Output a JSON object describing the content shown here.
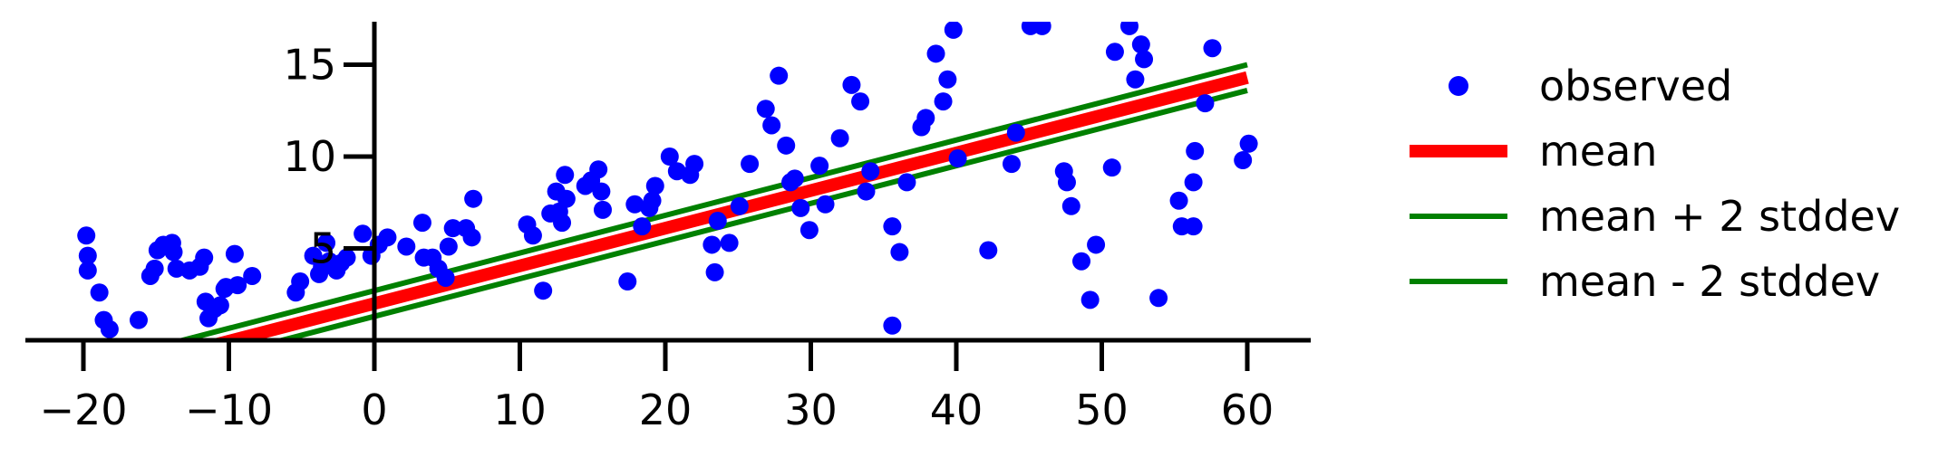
{
  "chart_data": {
    "type": "scatter",
    "title": "",
    "xlabel": "",
    "ylabel": "",
    "xlim": [
      -24,
      64
    ],
    "ylim": [
      0,
      17
    ],
    "xticks": [
      -20,
      -10,
      0,
      10,
      20,
      30,
      40,
      50,
      60
    ],
    "yticks": [
      5,
      10,
      15
    ],
    "xtick_labels": [
      "−20",
      "−10",
      "0",
      "10",
      "20",
      "30",
      "40",
      "50",
      "60"
    ],
    "ytick_labels": [
      "5",
      "10",
      "15"
    ],
    "grid": false,
    "legend": {
      "placement": "right"
    },
    "series": [
      {
        "name": "observed",
        "kind": "scatter",
        "color": "#0000ff",
        "points": [
          [
            -19.8,
            5.7
          ],
          [
            -19.7,
            4.6
          ],
          [
            -19.7,
            3.8
          ],
          [
            -18.9,
            2.6
          ],
          [
            -18.6,
            1.1
          ],
          [
            -18.2,
            0.6
          ],
          [
            -16.2,
            1.1
          ],
          [
            -15.4,
            3.5
          ],
          [
            -15.1,
            3.9
          ],
          [
            -14.9,
            4.9
          ],
          [
            -14.5,
            5.2
          ],
          [
            -13.9,
            5.3
          ],
          [
            -13.8,
            4.8
          ],
          [
            -13.6,
            3.9
          ],
          [
            -12.7,
            3.8
          ],
          [
            -12.0,
            4.0
          ],
          [
            -11.7,
            4.5
          ],
          [
            -11.6,
            2.1
          ],
          [
            -11.4,
            1.2
          ],
          [
            -11.0,
            1.7
          ],
          [
            -10.6,
            1.9
          ],
          [
            -10.3,
            2.8
          ],
          [
            -10.2,
            2.9
          ],
          [
            -9.6,
            4.7
          ],
          [
            -9.4,
            3.0
          ],
          [
            -8.4,
            3.5
          ],
          [
            -5.4,
            2.6
          ],
          [
            -5.1,
            3.2
          ],
          [
            -4.2,
            4.6
          ],
          [
            -3.8,
            3.6
          ],
          [
            -3.6,
            4.0
          ],
          [
            -3.3,
            5.3
          ],
          [
            -3.1,
            4.3
          ],
          [
            -2.6,
            3.8
          ],
          [
            -2.3,
            4.2
          ],
          [
            -1.9,
            4.5
          ],
          [
            -0.8,
            5.8
          ],
          [
            -0.2,
            4.6
          ],
          [
            0.3,
            5.2
          ],
          [
            0.9,
            5.6
          ],
          [
            2.2,
            5.1
          ],
          [
            3.3,
            6.4
          ],
          [
            3.4,
            4.5
          ],
          [
            4.0,
            4.5
          ],
          [
            4.4,
            3.9
          ],
          [
            4.9,
            3.4
          ],
          [
            5.1,
            5.1
          ],
          [
            5.4,
            6.1
          ],
          [
            6.3,
            6.1
          ],
          [
            6.7,
            5.6
          ],
          [
            6.8,
            7.7
          ],
          [
            10.5,
            6.3
          ],
          [
            10.9,
            5.7
          ],
          [
            11.6,
            2.7
          ],
          [
            12.1,
            6.9
          ],
          [
            12.5,
            8.1
          ],
          [
            12.7,
            7.0
          ],
          [
            12.9,
            6.4
          ],
          [
            13.1,
            9.0
          ],
          [
            13.2,
            7.7
          ],
          [
            14.5,
            8.4
          ],
          [
            14.9,
            8.7
          ],
          [
            15.4,
            9.3
          ],
          [
            15.6,
            8.1
          ],
          [
            15.7,
            7.1
          ],
          [
            17.4,
            3.2
          ],
          [
            17.9,
            7.4
          ],
          [
            18.4,
            6.2
          ],
          [
            18.9,
            7.2
          ],
          [
            19.1,
            7.6
          ],
          [
            19.3,
            8.4
          ],
          [
            20.3,
            10.0
          ],
          [
            20.8,
            9.2
          ],
          [
            21.7,
            9.0
          ],
          [
            22.0,
            9.6
          ],
          [
            23.2,
            5.2
          ],
          [
            23.4,
            3.7
          ],
          [
            23.6,
            6.5
          ],
          [
            24.4,
            5.3
          ],
          [
            25.1,
            7.3
          ],
          [
            25.8,
            9.6
          ],
          [
            26.9,
            12.6
          ],
          [
            27.3,
            11.7
          ],
          [
            27.8,
            14.4
          ],
          [
            28.3,
            10.6
          ],
          [
            28.6,
            8.6
          ],
          [
            28.9,
            8.8
          ],
          [
            29.3,
            7.2
          ],
          [
            29.9,
            6.0
          ],
          [
            30.6,
            9.5
          ],
          [
            31.0,
            7.4
          ],
          [
            32.0,
            11.0
          ],
          [
            32.8,
            13.9
          ],
          [
            33.4,
            13.0
          ],
          [
            33.8,
            8.1
          ],
          [
            34.1,
            9.2
          ],
          [
            35.6,
            6.2
          ],
          [
            35.6,
            0.8
          ],
          [
            36.1,
            4.8
          ],
          [
            36.6,
            8.6
          ],
          [
            37.6,
            11.6
          ],
          [
            37.9,
            12.1
          ],
          [
            38.6,
            15.6
          ],
          [
            39.1,
            13.0
          ],
          [
            39.4,
            14.2
          ],
          [
            39.8,
            16.9
          ],
          [
            40.1,
            9.9
          ],
          [
            42.2,
            4.9
          ],
          [
            43.8,
            9.6
          ],
          [
            44.1,
            11.3
          ],
          [
            45.1,
            17.1
          ],
          [
            45.9,
            17.1
          ],
          [
            47.4,
            9.2
          ],
          [
            47.6,
            8.6
          ],
          [
            47.9,
            7.3
          ],
          [
            48.6,
            4.3
          ],
          [
            49.2,
            2.2
          ],
          [
            49.6,
            5.2
          ],
          [
            50.7,
            9.4
          ],
          [
            50.9,
            15.7
          ],
          [
            51.9,
            17.1
          ],
          [
            52.3,
            14.2
          ],
          [
            52.7,
            16.1
          ],
          [
            52.9,
            15.3
          ],
          [
            53.9,
            2.3
          ],
          [
            55.3,
            7.6
          ],
          [
            55.5,
            6.2
          ],
          [
            56.3,
            6.2
          ],
          [
            56.3,
            8.6
          ],
          [
            56.4,
            10.3
          ],
          [
            57.1,
            12.9
          ],
          [
            57.6,
            15.9
          ],
          [
            59.7,
            9.8
          ],
          [
            60.1,
            10.7
          ]
        ]
      },
      {
        "name": "mean",
        "kind": "line",
        "color": "#ff0000",
        "slope": 0.205,
        "intercept": 2.0,
        "x": [
          -24,
          60
        ]
      },
      {
        "name": "mean + 2 stddev",
        "kind": "line",
        "color": "#008000",
        "slope": 0.205,
        "intercept": 2.7,
        "x": [
          -24,
          60
        ]
      },
      {
        "name": "mean - 2 stddev",
        "kind": "line",
        "color": "#008000",
        "slope": 0.205,
        "intercept": 1.3,
        "x": [
          -24,
          60
        ]
      }
    ]
  }
}
